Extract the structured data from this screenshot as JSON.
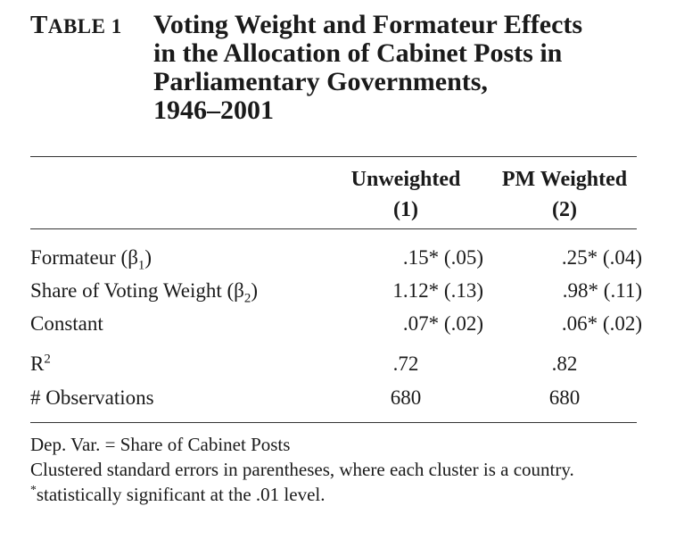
{
  "caption": {
    "label_first": "T",
    "label_rest": "ABLE 1",
    "title_lines": [
      "Voting Weight and Formateur Effects",
      "in the Allocation of Cabinet Posts in",
      "Parliamentary Governments,",
      "1946–2001"
    ]
  },
  "columns": [
    {
      "name": "Unweighted",
      "number": "(1)"
    },
    {
      "name": "PM Weighted",
      "number": "(2)"
    }
  ],
  "rows": [
    {
      "label_main": "Formateur (β",
      "label_sub": "1",
      "label_end": ")",
      "v1": ".15* (.05)",
      "v2": ".25* (.04)"
    },
    {
      "label_main": "Share of Voting Weight (β",
      "label_sub": "2",
      "label_end": ")",
      "v1": "1.12* (.13)",
      "v2": ".98* (.11)"
    },
    {
      "label_main": "Constant",
      "v1": ".07* (.02)",
      "v2": ".06* (.02)"
    },
    {
      "label_main": "R",
      "label_sup": "2",
      "v1": ".72",
      "v2": ".82"
    },
    {
      "label_main": "# Observations",
      "v1": "680",
      "v2": "680"
    }
  ],
  "notes": {
    "dep_var": "Dep. Var. = Share of Cabinet Posts",
    "clustered": "Clustered standard errors in parentheses, where each cluster is a country.",
    "sig_mark": "*",
    "sig_text": "statistically significant at the .01 level."
  }
}
